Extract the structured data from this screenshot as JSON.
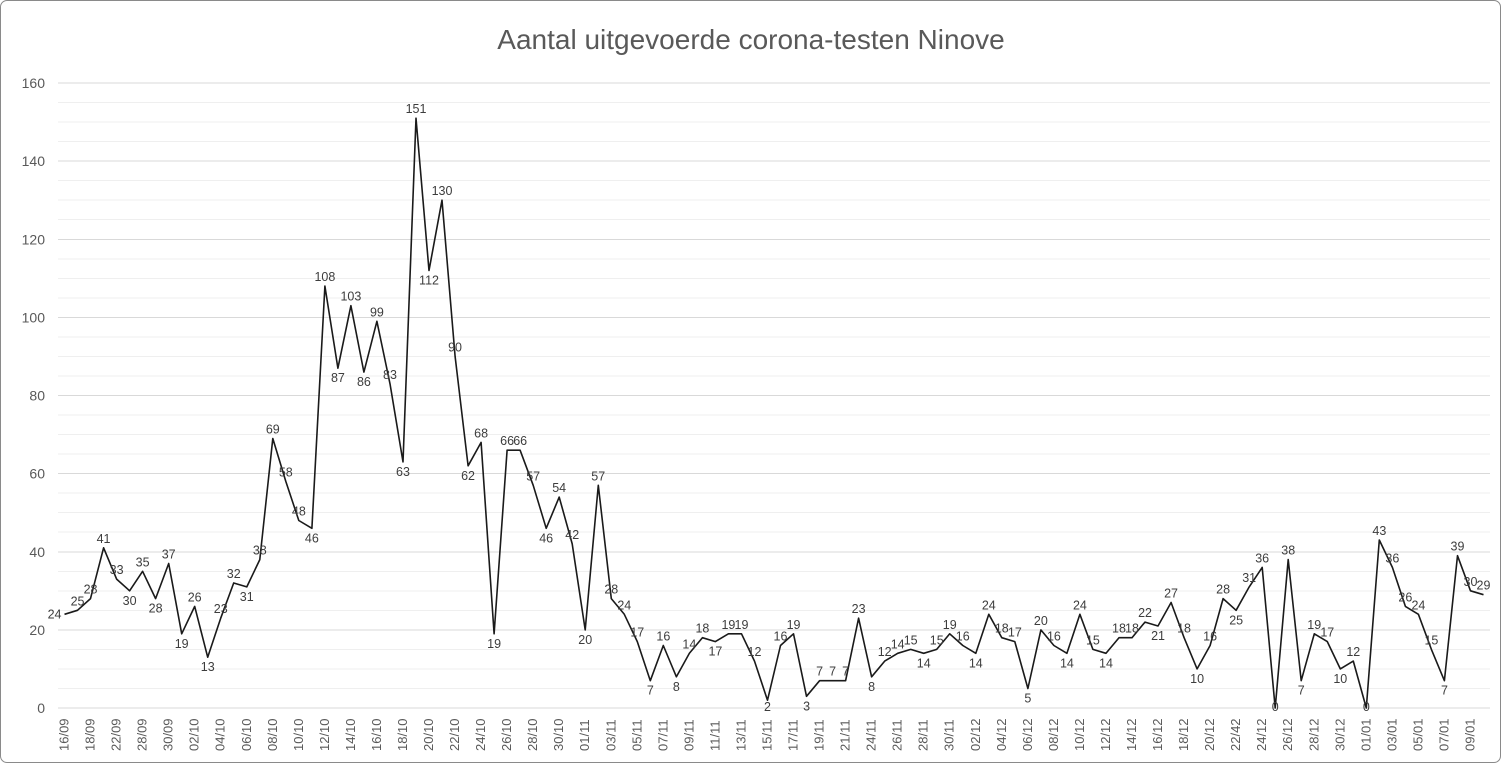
{
  "window": {
    "background_color": "#ffffff",
    "border_color": "#8a8a8a"
  },
  "chart_data": {
    "type": "line",
    "title": "Aantal uitgevoerde corona-testen Ninove",
    "xlabel": "",
    "ylabel": "",
    "ylim": [
      0,
      160
    ],
    "y_ticks": [
      0,
      20,
      40,
      60,
      80,
      100,
      120,
      140,
      160
    ],
    "minor_gridline_step": 5,
    "grid": true,
    "legend_position": "none",
    "data_labels_visible": true,
    "x_tick_rotation_degrees": -90,
    "x_ticks_every_n_points": 2,
    "x_tick_labels": [
      "16/09",
      "18/09",
      "22/09",
      "28/09",
      "30/09",
      "02/10",
      "04/10",
      "06/10",
      "08/10",
      "10/10",
      "12/10",
      "14/10",
      "16/10",
      "18/10",
      "20/10",
      "22/10",
      "24/10",
      "26/10",
      "28/10",
      "30/10",
      "01/11",
      "03/11",
      "05/11",
      "07/11",
      "09/11",
      "11/11",
      "13/11",
      "15/11",
      "17/11",
      "19/11",
      "21/11",
      "24/11",
      "26/11",
      "28/11",
      "30/11",
      "02/12",
      "04/12",
      "06/12",
      "08/12",
      "10/12",
      "12/12",
      "14/12",
      "16/12",
      "18/12",
      "20/12",
      "22/42",
      "24/12",
      "26/12",
      "28/12",
      "30/12",
      "01/01",
      "03/01",
      "05/01",
      "07/01",
      "09/01"
    ],
    "values": [
      24,
      25,
      28,
      41,
      33,
      30,
      35,
      28,
      37,
      19,
      26,
      13,
      23,
      32,
      31,
      38,
      69,
      58,
      48,
      46,
      108,
      87,
      103,
      86,
      99,
      83,
      63,
      151,
      112,
      130,
      90,
      62,
      68,
      19,
      66,
      66,
      57,
      46,
      54,
      42,
      20,
      57,
      28,
      24,
      17,
      7,
      16,
      8,
      14,
      18,
      17,
      19,
      19,
      12,
      2,
      16,
      19,
      3,
      7,
      7,
      7,
      23,
      8,
      12,
      14,
      15,
      14,
      15,
      19,
      16,
      14,
      24,
      18,
      17,
      5,
      20,
      16,
      14,
      24,
      15,
      14,
      18,
      18,
      22,
      21,
      27,
      18,
      10,
      16,
      28,
      25,
      31,
      36,
      0,
      38,
      7,
      19,
      17,
      10,
      12,
      0,
      43,
      36,
      26,
      24,
      15,
      7,
      39,
      30,
      29
    ],
    "colors": {
      "line": "#1a1a1a",
      "data_label": "#3d3d3d",
      "axis_text": "#595959",
      "title_text": "#595959",
      "major_gridline": "#d9d9d9",
      "minor_gridline": "#efefef"
    }
  }
}
